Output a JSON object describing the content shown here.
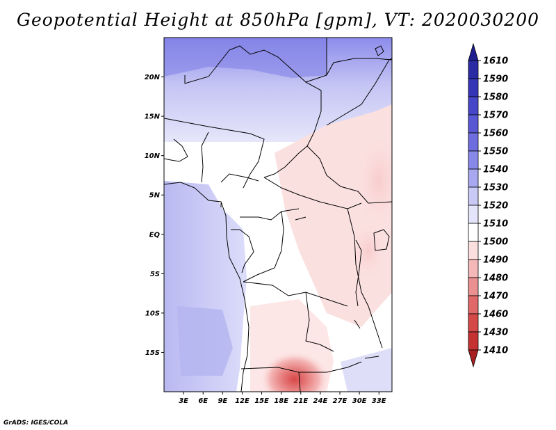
{
  "title": "Geopotential Height at 850hPa [gpm], VT: 2020030200",
  "credit": "GrADS: IGES/COLA",
  "map": {
    "lat_labels": [
      "20N",
      "15N",
      "10N",
      "5N",
      "EQ",
      "5S",
      "10S",
      "15S"
    ],
    "lat_values": [
      20,
      15,
      10,
      5,
      0,
      -5,
      -10,
      -15
    ],
    "lon_labels": [
      "3E",
      "6E",
      "9E",
      "12E",
      "15E",
      "18E",
      "21E",
      "24E",
      "27E",
      "30E",
      "33E"
    ],
    "lon_values": [
      3,
      6,
      9,
      12,
      15,
      18,
      21,
      24,
      27,
      30,
      33
    ],
    "lon_range": [
      0,
      35
    ],
    "lat_range": [
      -20,
      25
    ]
  },
  "colorbar": {
    "labels": [
      "1610",
      "1590",
      "1580",
      "1570",
      "1560",
      "1550",
      "1540",
      "1530",
      "1520",
      "1510",
      "1500",
      "1490",
      "1480",
      "1470",
      "1460",
      "1430",
      "1410"
    ],
    "colors": [
      "#1f1f8f",
      "#2a2aa4",
      "#3535b8",
      "#4646c8",
      "#5858d4",
      "#6d6de0",
      "#8888ea",
      "#a8a8f0",
      "#c9c9f6",
      "#e4e4fb",
      "#ffffff",
      "#fbdede",
      "#f4b8b8",
      "#ea9090",
      "#e06868",
      "#d44848",
      "#c43232",
      "#a82020"
    ]
  }
}
